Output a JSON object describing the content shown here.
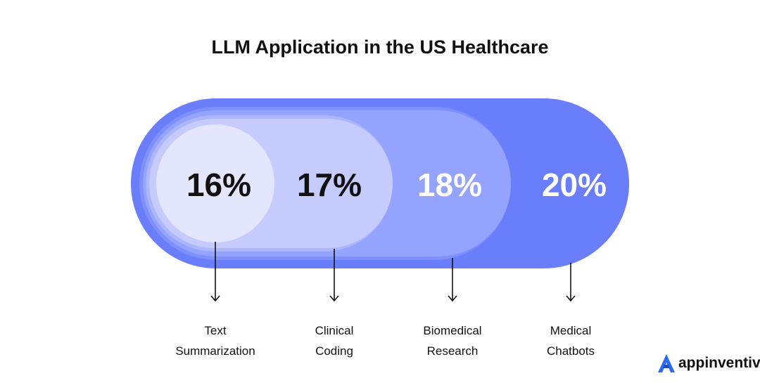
{
  "chart_data": {
    "type": "bar",
    "title": "LLM Application in the US Healthcare",
    "categories": [
      [
        "Text",
        "Summarization"
      ],
      [
        "Clinical",
        "Coding"
      ],
      [
        "Biomedical",
        "Research"
      ],
      [
        "Medical",
        "Chatbots"
      ]
    ],
    "values": [
      16,
      17,
      18,
      20
    ],
    "value_labels": [
      "16%",
      "17%",
      "18%",
      "20%"
    ],
    "unit": "%",
    "colors": [
      "#e4e6fd",
      "#c5cbfd",
      "#94a3fd",
      "#6a7efc"
    ],
    "label_colors": [
      "#111111",
      "#111111",
      "#ffffff",
      "#ffffff"
    ],
    "ring_colors": [
      "#aab6fd",
      "#7d90fc"
    ]
  },
  "brand": {
    "name": "appinventiv",
    "icon": "appinventiv-logo-icon",
    "color": "#2b6bf3"
  }
}
